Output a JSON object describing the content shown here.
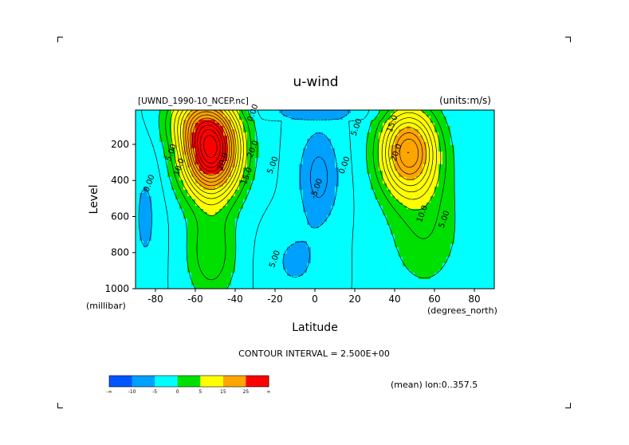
{
  "chart_data": {
    "type": "contour",
    "title": "u-wind",
    "dataset_label": "[UWND_1990-10_NCEP.nc]",
    "units_label": "(units:m/s)",
    "xlabel": "Latitude",
    "xunit": "(degrees_north)",
    "ylabel": "Level",
    "yunit": "(millibar)",
    "x_range": [
      -90,
      90
    ],
    "y_range": [
      1000,
      10
    ],
    "y_inverted": true,
    "x_ticks": [
      "-80",
      "-60",
      "-40",
      "-20",
      "0",
      "20",
      "40",
      "60",
      "80"
    ],
    "x_tick_values": [
      -80,
      -60,
      -40,
      -20,
      0,
      20,
      40,
      60,
      80
    ],
    "y_ticks": [
      "200",
      "400",
      "600",
      "800",
      "1000"
    ],
    "y_tick_values": [
      200,
      400,
      600,
      800,
      1000
    ],
    "contour_interval_text": "CONTOUR INTERVAL = 2.500E+00",
    "mean_text": "(mean) lon:0..357.5",
    "contour_labels": [
      {
        "text": "20.0",
        "lat": -45,
        "level": 300
      },
      {
        "text": "20.0",
        "lat": -30,
        "level": 230
      },
      {
        "text": "15.0",
        "lat": -33,
        "level": 380
      },
      {
        "text": "10.0",
        "lat": -67,
        "level": 330
      },
      {
        "text": "5.00",
        "lat": -71,
        "level": 250
      },
      {
        "text": "0.00",
        "lat": -82,
        "level": 420
      },
      {
        "text": "5.00",
        "lat": -20,
        "level": 320
      },
      {
        "text": "5.00",
        "lat": -19,
        "level": 840
      },
      {
        "text": "0.00",
        "lat": 16,
        "level": 320
      },
      {
        "text": "-5.00",
        "lat": 2,
        "level": 450
      },
      {
        "text": "15.0",
        "lat": 40,
        "level": 90
      },
      {
        "text": "20.0",
        "lat": 42,
        "level": 250
      },
      {
        "text": "5.00",
        "lat": 22,
        "level": 110
      },
      {
        "text": "0.00",
        "lat": -30,
        "level": 30
      },
      {
        "text": "10.0",
        "lat": 55,
        "level": 590
      },
      {
        "text": "5.00",
        "lat": 66,
        "level": 620
      }
    ],
    "colorbar": {
      "colors": [
        "#0055ff",
        "#00a0ff",
        "#00ffff",
        "#00e000",
        "#ffff00",
        "#ffa500",
        "#ff0000"
      ],
      "tick_labels": [
        "-∞",
        "-10",
        "-5",
        "0",
        "5",
        "15",
        "25",
        "∞"
      ]
    },
    "fill_colors": {
      "neg_strong": "#0055ff",
      "neg": "#00a0ff",
      "neg_weak": "#00ffff",
      "zero": "#00e000",
      "pos": "#ffff00",
      "pos_mid": "#ffa500",
      "pos_strong": "#ff0000"
    }
  }
}
